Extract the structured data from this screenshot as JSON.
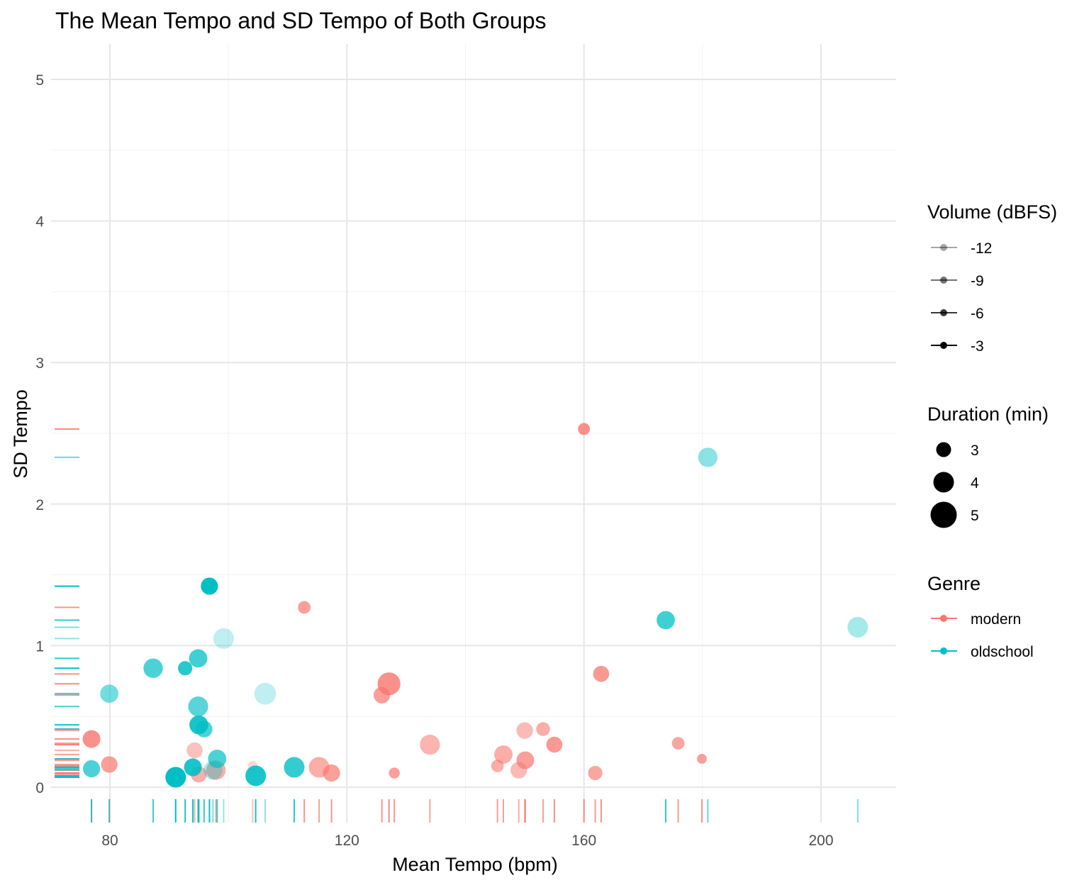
{
  "chart_data": {
    "type": "scatter",
    "title": "The Mean Tempo and SD Tempo of Both Groups",
    "xlabel": "Mean Tempo (bpm)",
    "ylabel": "SD Tempo",
    "xlim": [
      69.5,
      212.5
    ],
    "ylim": [
      0,
      5.25
    ],
    "x_ticks": [
      80,
      120,
      160,
      200
    ],
    "y_ticks": [
      0,
      1,
      2,
      3,
      4,
      5
    ],
    "grid": true,
    "rug": true,
    "legend_position": "right",
    "legends": [
      {
        "title": "Volume (dBFS)",
        "type": "alpha",
        "items": [
          {
            "label": "-12",
            "alpha": 0.35
          },
          {
            "label": "-9",
            "alpha": 0.55
          },
          {
            "label": "-6",
            "alpha": 0.78
          },
          {
            "label": "-3",
            "alpha": 1.0
          }
        ]
      },
      {
        "title": "Duration (min)",
        "type": "size",
        "items": [
          {
            "label": "3",
            "value": 3
          },
          {
            "label": "4",
            "value": 4
          },
          {
            "label": "5",
            "value": 5
          }
        ]
      },
      {
        "title": "Genre",
        "type": "color",
        "items": [
          {
            "label": "modern",
            "color": "#F8766D"
          },
          {
            "label": "oldschool",
            "color": "#00BFC4"
          }
        ]
      }
    ],
    "series": [
      {
        "name": "modern",
        "color": "#F8766D",
        "points": [
          {
            "x": 76.9,
            "y": 0.34,
            "duration": 3.5,
            "alpha": 0.8
          },
          {
            "x": 79.9,
            "y": 0.16,
            "duration": 3.3,
            "alpha": 0.7
          },
          {
            "x": 94.3,
            "y": 0.26,
            "duration": 3.2,
            "alpha": 0.45
          },
          {
            "x": 95.0,
            "y": 0.09,
            "duration": 3.2,
            "alpha": 0.6
          },
          {
            "x": 97.9,
            "y": 0.12,
            "duration": 3.8,
            "alpha": 0.6
          },
          {
            "x": 104.1,
            "y": 0.15,
            "duration": 2.1,
            "alpha": 0.3
          },
          {
            "x": 112.8,
            "y": 1.27,
            "duration": 2.6,
            "alpha": 0.7
          },
          {
            "x": 115.3,
            "y": 0.14,
            "duration": 4.0,
            "alpha": 0.6
          },
          {
            "x": 117.4,
            "y": 0.1,
            "duration": 3.4,
            "alpha": 0.7
          },
          {
            "x": 125.9,
            "y": 0.65,
            "duration": 3.3,
            "alpha": 0.7
          },
          {
            "x": 127.1,
            "y": 0.73,
            "duration": 4.4,
            "alpha": 0.8
          },
          {
            "x": 128.0,
            "y": 0.1,
            "duration": 2.3,
            "alpha": 0.7
          },
          {
            "x": 134.0,
            "y": 0.3,
            "duration": 3.9,
            "alpha": 0.55
          },
          {
            "x": 145.4,
            "y": 0.15,
            "duration": 2.6,
            "alpha": 0.6
          },
          {
            "x": 146.4,
            "y": 0.23,
            "duration": 3.6,
            "alpha": 0.6
          },
          {
            "x": 149.0,
            "y": 0.12,
            "duration": 3.3,
            "alpha": 0.5
          },
          {
            "x": 150.0,
            "y": 0.4,
            "duration": 3.3,
            "alpha": 0.5
          },
          {
            "x": 150.1,
            "y": 0.19,
            "duration": 3.5,
            "alpha": 0.7
          },
          {
            "x": 153.1,
            "y": 0.41,
            "duration": 2.8,
            "alpha": 0.6
          },
          {
            "x": 155.0,
            "y": 0.3,
            "duration": 3.2,
            "alpha": 0.75
          },
          {
            "x": 160.0,
            "y": 2.53,
            "duration": 2.5,
            "alpha": 0.8
          },
          {
            "x": 161.9,
            "y": 0.1,
            "duration": 2.9,
            "alpha": 0.65
          },
          {
            "x": 162.9,
            "y": 0.8,
            "duration": 3.2,
            "alpha": 0.75
          },
          {
            "x": 175.9,
            "y": 0.31,
            "duration": 2.6,
            "alpha": 0.65
          },
          {
            "x": 179.9,
            "y": 0.2,
            "duration": 2.1,
            "alpha": 0.7
          }
        ]
      },
      {
        "name": "oldschool",
        "color": "#00BFC4",
        "points": [
          {
            "x": 76.9,
            "y": 0.13,
            "duration": 3.4,
            "alpha": 0.7
          },
          {
            "x": 79.9,
            "y": 0.66,
            "duration": 3.6,
            "alpha": 0.55
          },
          {
            "x": 87.3,
            "y": 0.84,
            "duration": 3.8,
            "alpha": 0.7
          },
          {
            "x": 91.1,
            "y": 0.07,
            "duration": 4.0,
            "alpha": 1.0
          },
          {
            "x": 92.7,
            "y": 0.84,
            "duration": 2.9,
            "alpha": 0.85
          },
          {
            "x": 94.0,
            "y": 0.14,
            "duration": 3.5,
            "alpha": 0.9
          },
          {
            "x": 94.9,
            "y": 0.91,
            "duration": 3.6,
            "alpha": 0.75
          },
          {
            "x": 94.9,
            "y": 0.57,
            "duration": 3.9,
            "alpha": 0.65
          },
          {
            "x": 95.0,
            "y": 0.44,
            "duration": 3.7,
            "alpha": 0.9
          },
          {
            "x": 95.9,
            "y": 0.41,
            "duration": 3.3,
            "alpha": 0.7
          },
          {
            "x": 96.8,
            "y": 1.42,
            "duration": 3.4,
            "alpha": 1.0
          },
          {
            "x": 97.4,
            "y": 0.12,
            "duration": 3.7,
            "alpha": 0.35
          },
          {
            "x": 98.1,
            "y": 0.2,
            "duration": 3.6,
            "alpha": 0.7
          },
          {
            "x": 99.2,
            "y": 1.05,
            "duration": 4.0,
            "alpha": 0.25
          },
          {
            "x": 104.6,
            "y": 0.08,
            "duration": 4.0,
            "alpha": 0.9
          },
          {
            "x": 106.2,
            "y": 0.66,
            "duration": 4.2,
            "alpha": 0.25
          },
          {
            "x": 111.1,
            "y": 0.14,
            "duration": 4.0,
            "alpha": 0.8
          },
          {
            "x": 173.8,
            "y": 1.18,
            "duration": 3.6,
            "alpha": 0.75
          },
          {
            "x": 180.9,
            "y": 2.33,
            "duration": 3.8,
            "alpha": 0.45
          },
          {
            "x": 206.2,
            "y": 1.13,
            "duration": 4.0,
            "alpha": 0.35
          }
        ]
      }
    ]
  }
}
